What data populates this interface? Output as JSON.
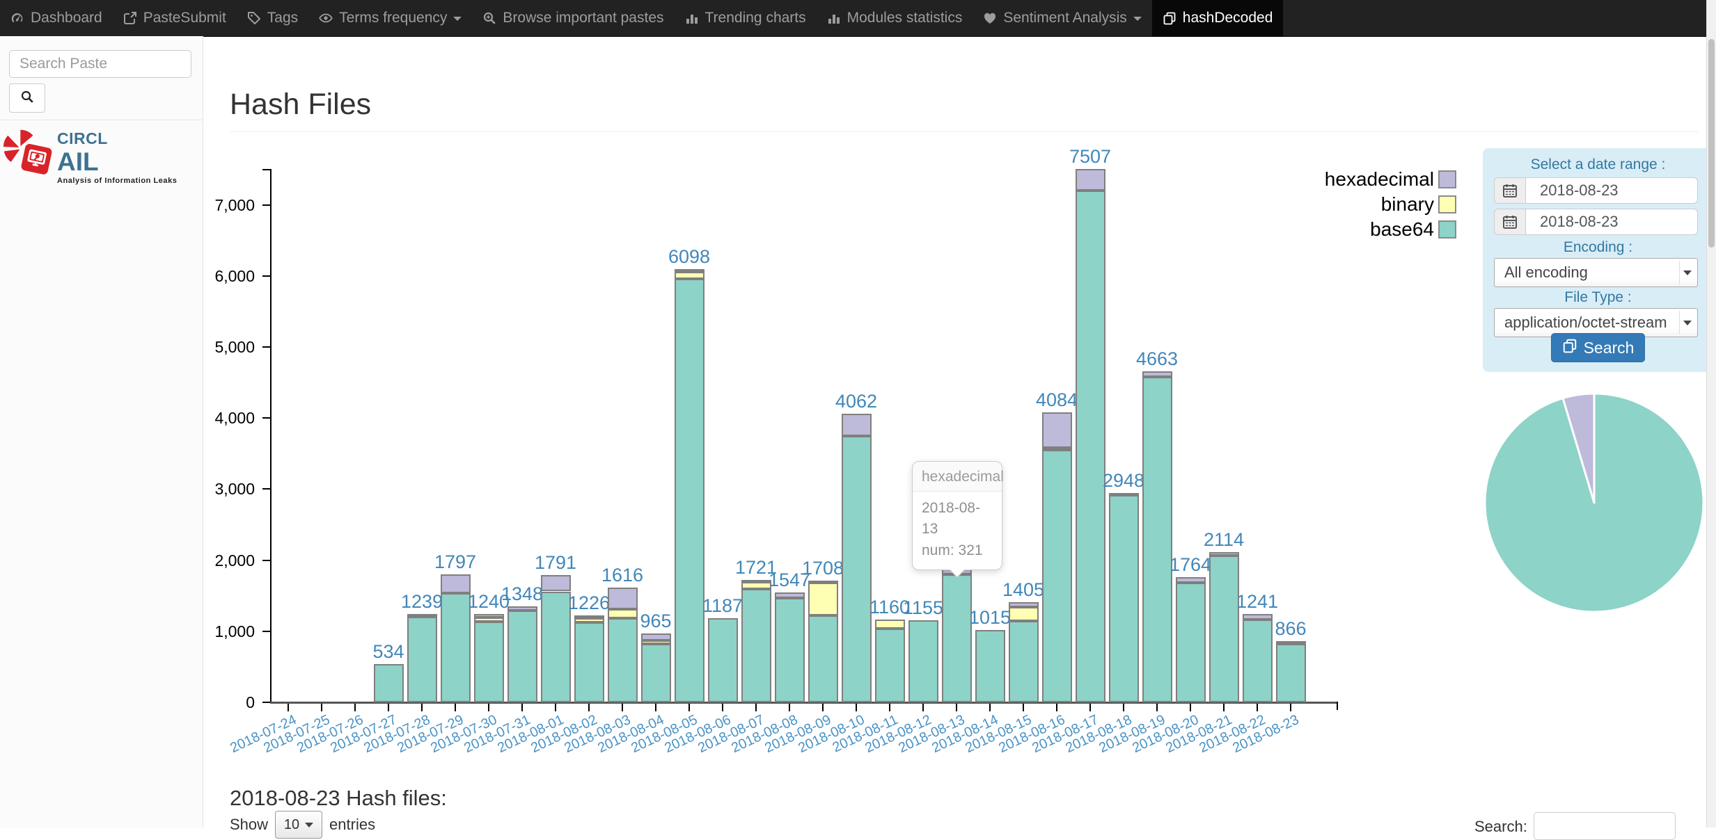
{
  "navbar": {
    "items": [
      {
        "label": "Dashboard",
        "icon": "dashboard-icon",
        "active": false,
        "caret": false
      },
      {
        "label": "PasteSubmit",
        "icon": "external-link-icon",
        "active": false,
        "caret": false
      },
      {
        "label": "Tags",
        "icon": "tag-icon",
        "active": false,
        "caret": false
      },
      {
        "label": "Terms frequency",
        "icon": "eye-icon",
        "active": false,
        "caret": true
      },
      {
        "label": "Browse important pastes",
        "icon": "search-plus-icon",
        "active": false,
        "caret": false
      },
      {
        "label": "Trending charts",
        "icon": "bar-chart-icon",
        "active": false,
        "caret": false
      },
      {
        "label": "Modules statistics",
        "icon": "bar-chart-icon",
        "active": false,
        "caret": false
      },
      {
        "label": "Sentiment Analysis",
        "icon": "heart-icon",
        "active": false,
        "caret": true
      },
      {
        "label": "hashDecoded",
        "icon": "copy-icon",
        "active": true,
        "caret": false
      }
    ]
  },
  "sidebar": {
    "search_placeholder": "Search Paste",
    "logo_name": "CIRCL",
    "logo_product": "AIL",
    "logo_tagline": "Analysis of Information Leaks"
  },
  "page": {
    "title": "Hash Files"
  },
  "chart_data": [
    {
      "type": "bar",
      "stacked": true,
      "title": "",
      "xlabel": "",
      "ylabel": "",
      "grid": false,
      "legend_position": "top-right",
      "legend": [
        "hexadecimal",
        "binary",
        "base64"
      ],
      "ylim": [
        0,
        7507
      ],
      "yticks": [
        0,
        1000,
        2000,
        3000,
        4000,
        5000,
        6000,
        7000
      ],
      "bar_label_color": "#4187b9",
      "axis_label_color": "#4a93c6",
      "categories": [
        "2018-07-24",
        "2018-07-25",
        "2018-07-26",
        "2018-07-27",
        "2018-07-28",
        "2018-07-29",
        "2018-07-30",
        "2018-07-31",
        "2018-08-01",
        "2018-08-02",
        "2018-08-03",
        "2018-08-04",
        "2018-08-05",
        "2018-08-06",
        "2018-08-07",
        "2018-08-08",
        "2018-08-09",
        "2018-08-10",
        "2018-08-11",
        "2018-08-12",
        "2018-08-13",
        "2018-08-14",
        "2018-08-15",
        "2018-08-16",
        "2018-08-17",
        "2018-08-18",
        "2018-08-19",
        "2018-08-20",
        "2018-08-21",
        "2018-08-22",
        "2018-08-23"
      ],
      "series": [
        {
          "name": "base64",
          "color": "#8dd3c7",
          "values": [
            0,
            0,
            0,
            534,
            1200,
            1540,
            1140,
            1288,
            1561,
            1126,
            1180,
            820,
            5958,
            1187,
            1591,
            1467,
            1220,
            3752,
            1040,
            1155,
            1805,
            1015,
            1150,
            3554,
            7207,
            2918,
            4583,
            1684,
            2064,
            1161,
            826
          ]
        },
        {
          "name": "binary",
          "color": "#ffffb3",
          "values": [
            0,
            0,
            0,
            0,
            0,
            0,
            50,
            0,
            0,
            60,
            130,
            55,
            100,
            0,
            100,
            0,
            460,
            0,
            120,
            0,
            0,
            0,
            195,
            30,
            0,
            30,
            0,
            0,
            0,
            0,
            0
          ]
        },
        {
          "name": "hexadecimal",
          "color": "#bebada",
          "values": [
            0,
            0,
            0,
            0,
            39,
            257,
            50,
            60,
            230,
            40,
            306,
            90,
            40,
            0,
            30,
            80,
            28,
            310,
            0,
            0,
            321,
            0,
            60,
            500,
            300,
            0,
            80,
            80,
            50,
            80,
            40
          ]
        }
      ],
      "totals": [
        0,
        0,
        0,
        534,
        1239,
        1797,
        1240,
        1348,
        1791,
        1226,
        1616,
        965,
        6098,
        1187,
        1721,
        1547,
        1708,
        4062,
        1160,
        1155,
        2126,
        1015,
        1405,
        4084,
        7507,
        2948,
        4663,
        1764,
        2114,
        1241,
        866
      ]
    },
    {
      "type": "pie",
      "title": "",
      "slices": [
        {
          "label": "base64",
          "value": 826,
          "color": "#8dd3c7"
        },
        {
          "label": "binary",
          "value": 0,
          "color": "#ffffb3"
        },
        {
          "label": "hexadecimal",
          "value": 40,
          "color": "#bebada"
        }
      ]
    }
  ],
  "tooltip": {
    "title": "hexadecimal",
    "date": "2018-08-13",
    "num": "num: 321"
  },
  "filter_panel": {
    "title": "Select a date range :",
    "date_from": "2018-08-23",
    "date_to": "2018-08-23",
    "encoding_label": "Encoding :",
    "encoding_value": "All encoding",
    "file_type_label": "File Type :",
    "file_type_value": "application/octet-stream",
    "search_button": "Search"
  },
  "table_section": {
    "heading": "2018-08-23 Hash files:",
    "show_label": "Show",
    "page_size": "10",
    "entries_label": "entries",
    "search_label": "Search:"
  },
  "colors": {
    "accent_blue": "#337ab7",
    "panel_bg": "#d9edf7",
    "navbar_bg": "#222222"
  }
}
